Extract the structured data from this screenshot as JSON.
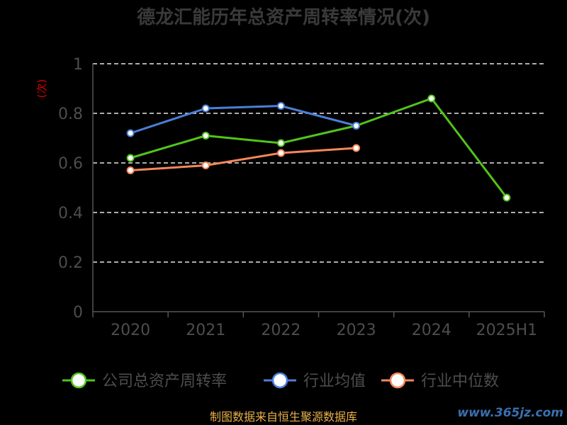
{
  "chart_data": {
    "type": "line",
    "title": "德龙汇能历年总资产周转率情况(次)",
    "ylabel": "(次)",
    "xlabel": "",
    "categories": [
      "2020",
      "2021",
      "2022",
      "2023",
      "2024",
      "2025H1"
    ],
    "ylim": [
      0,
      1
    ],
    "yticks": [
      0,
      0.2,
      0.4,
      0.6,
      0.8,
      1
    ],
    "ytick_labels": [
      "0",
      "0.2",
      "0.4",
      "0.6",
      "0.8",
      "1"
    ],
    "grid": true,
    "legend_position": "bottom",
    "series": [
      {
        "name": "公司总资产周转率",
        "color": "#52c41a",
        "values": [
          0.62,
          0.71,
          0.68,
          0.75,
          0.86,
          0.46
        ]
      },
      {
        "name": "行业均值",
        "color": "#4a7fd6",
        "values": [
          0.72,
          0.82,
          0.83,
          0.75,
          null,
          null
        ]
      },
      {
        "name": "行业中位数",
        "color": "#f5875a",
        "values": [
          0.57,
          0.59,
          0.64,
          0.66,
          null,
          null
        ]
      }
    ]
  },
  "footer": {
    "source": "制图数据来自恒生聚源数据库",
    "watermark": "www.365jz.com"
  }
}
